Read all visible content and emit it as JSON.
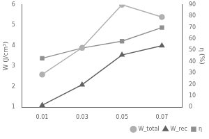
{
  "chart_data": {
    "type": "line",
    "x": [
      0.01,
      0.03,
      0.05,
      0.07
    ],
    "series": [
      {
        "name": "W_total",
        "color": "#b0b0b0",
        "marker": "circle",
        "values": [
          2.6,
          3.9,
          6.0,
          5.4
        ]
      },
      {
        "name": "W_rec",
        "color": "#606060",
        "marker": "triangle",
        "values": [
          1.1,
          2.1,
          3.55,
          4.0
        ]
      },
      {
        "name": "η",
        "color": "#909090",
        "marker": "square",
        "axis": "y2",
        "values": [
          43,
          52,
          58,
          70
        ]
      }
    ],
    "ylabel": "W (J/cm³)",
    "y2label": "η (%)",
    "xlim": [
      0,
      0.08
    ],
    "xticks": [
      0.01,
      0.03,
      0.05,
      0.07
    ],
    "ylim": [
      1,
      6
    ],
    "yticks": [
      1,
      2,
      3,
      4,
      5,
      6
    ],
    "y2lim": [
      0,
      90
    ],
    "y2ticks": [
      0,
      10,
      20,
      30,
      40,
      50,
      60,
      70,
      80,
      90
    ],
    "grid": false,
    "legend": "lower right"
  }
}
